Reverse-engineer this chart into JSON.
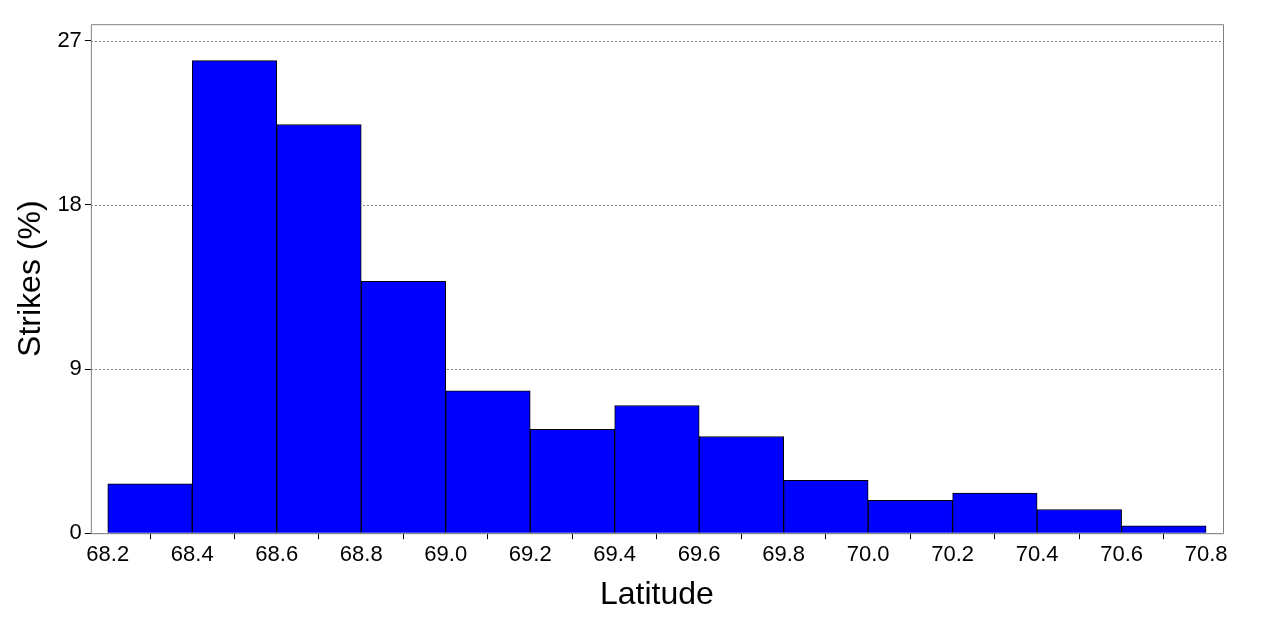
{
  "chart_data": {
    "type": "histogram",
    "xlabel": "Latitude",
    "ylabel": "Strikes (%)",
    "bins": [
      68.2,
      68.4,
      68.6,
      68.8,
      69.0,
      69.2,
      69.4,
      69.6,
      69.8,
      70.0,
      70.2,
      70.4,
      70.6,
      70.8
    ],
    "values": [
      2.7,
      25.9,
      22.4,
      13.8,
      7.8,
      5.7,
      7.0,
      5.3,
      2.9,
      1.8,
      2.2,
      1.3,
      0.4
    ],
    "color": "#0000ff",
    "xlim": [
      68.16,
      70.84
    ],
    "xticks": [
      {
        "value": 68.2,
        "label": "68.2"
      },
      {
        "value": 68.4,
        "label": "68.4"
      },
      {
        "value": 68.6,
        "label": "68.6"
      },
      {
        "value": 68.8,
        "label": "68.8"
      },
      {
        "value": 69.0,
        "label": "69.0"
      },
      {
        "value": 69.2,
        "label": "69.2"
      },
      {
        "value": 69.4,
        "label": "69.4"
      },
      {
        "value": 69.6,
        "label": "69.6"
      },
      {
        "value": 69.8,
        "label": "69.8"
      },
      {
        "value": 70.0,
        "label": "70.0"
      },
      {
        "value": 70.2,
        "label": "70.2"
      },
      {
        "value": 70.4,
        "label": "70.4"
      },
      {
        "value": 70.6,
        "label": "70.6"
      },
      {
        "value": 70.8,
        "label": "70.8"
      }
    ],
    "ylim": [
      0,
      27.9
    ],
    "yticks": [
      0,
      9,
      18,
      27
    ],
    "grid": "y",
    "legend": false
  }
}
